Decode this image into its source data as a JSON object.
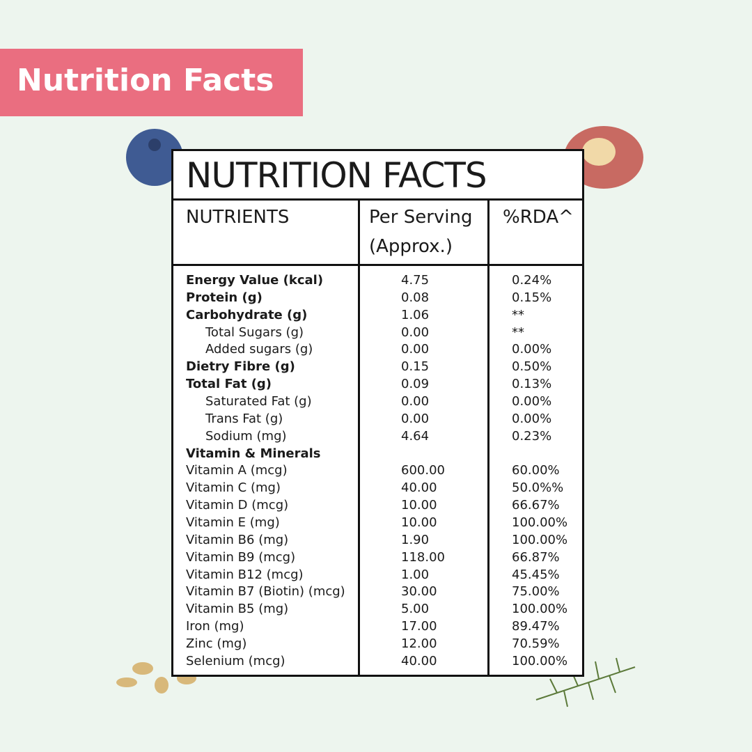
{
  "banner": {
    "title": "Nutrition Facts"
  },
  "table": {
    "title": "NUTRITION FACTS",
    "headers": [
      "NUTRIENTS",
      "Per Serving",
      "(Approx.)",
      "%RDA^"
    ],
    "rows": [
      {
        "nutrient": "Energy Value (kcal)",
        "per_serving": "4.75",
        "rda": "0.24%"
      },
      {
        "nutrient": "Protein (g)",
        "per_serving": "0.08",
        "rda": "0.15%"
      },
      {
        "nutrient": "Carbohydrate (g)",
        "per_serving": "1.06",
        "rda": "**",
        "sub": [
          {
            "nutrient": "Total Sugars (g)",
            "per_serving": "0.00",
            "rda": "**"
          },
          {
            "nutrient": "Added sugars (g)",
            "per_serving": "0.00",
            "rda": "0.00%"
          }
        ]
      },
      {
        "nutrient": "Dietry Fibre (g)",
        "per_serving": "0.15",
        "rda": "0.50%"
      },
      {
        "nutrient": "Total Fat (g)",
        "per_serving": "0.09",
        "rda": "0.13%",
        "sub": [
          {
            "nutrient": "Saturated Fat (g)",
            "per_serving": "0.00",
            "rda": "0.00%"
          },
          {
            "nutrient": "Trans Fat (g)",
            "per_serving": "0.00",
            "rda": "0.00%"
          },
          {
            "nutrient": "Sodium (mg)",
            "per_serving": "4.64",
            "rda": "0.23%"
          }
        ]
      }
    ],
    "minerals": {
      "heading": "Vitamin & Minerals",
      "rows": [
        {
          "nutrient": "Vitamin A (mcg)",
          "per_serving": "600.00",
          "rda": "60.00%"
        },
        {
          "nutrient": "Vitamin C (mg)",
          "per_serving": "40.00",
          "rda": "50.0%%"
        },
        {
          "nutrient": "Vitamin D (mcg)",
          "per_serving": "10.00",
          "rda": "66.67%"
        },
        {
          "nutrient": "Vitamin E (mg)",
          "per_serving": "10.00",
          "rda": "100.00%"
        },
        {
          "nutrient": "Vitamin B6 (mg)",
          "per_serving": "1.90",
          "rda": "100.00%"
        },
        {
          "nutrient": "Vitamin B9 (mcg)",
          "per_serving": "118.00",
          "rda": "66.87%"
        },
        {
          "nutrient": "Vitamin B12 (mcg)",
          "per_serving": "1.00",
          "rda": "45.45%"
        },
        {
          "nutrient": "Vitamin B7 (Biotin) (mcg)",
          "per_serving": "30.00",
          "rda": "75.00%"
        },
        {
          "nutrient": "Vitamin B5  (mg)",
          "per_serving": "5.00",
          "rda": "100.00%"
        },
        {
          "nutrient": "Iron (mg)",
          "per_serving": "17.00",
          "rda": "89.47%"
        },
        {
          "nutrient": "Zinc (mg)",
          "per_serving": "12.00",
          "rda": "70.59%"
        },
        {
          "nutrient": "Selenium (mcg)",
          "per_serving": "40.00",
          "rda": "100.00%"
        }
      ]
    }
  }
}
